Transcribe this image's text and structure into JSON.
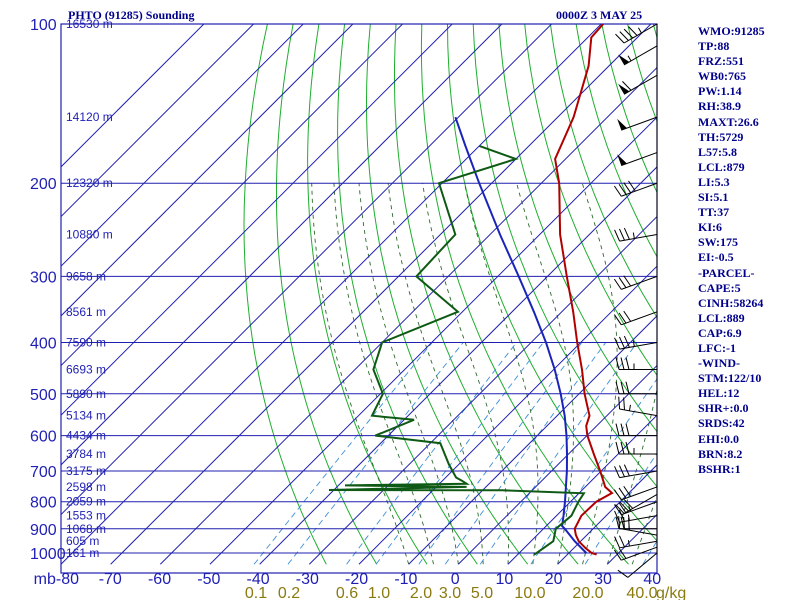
{
  "header": {
    "station": "PHTO (91285) Sounding",
    "valid_time": "0000Z  3 MAY 25"
  },
  "indices": [
    "WMO:91285",
    "TP:88",
    "FRZ:551",
    "WB0:765",
    "PW:1.14",
    "RH:38.9",
    "MAXT:26.6",
    "TH:5729",
    "L57:5.8",
    "LCL:879",
    "LI:5.3",
    "SI:5.1",
    "TT:37",
    "KI:6",
    "SW:175",
    "EI:-0.5",
    "-PARCEL-",
    "CAPE:5",
    "CINH:58264",
    "LCL:889",
    "CAP:6.9",
    "LFC:-1",
    "-WIND-",
    "STM:122/10",
    "HEL:12",
    "SHR+:0.0",
    "SRDS:42",
    "EHI:0.0",
    "BRN:8.2",
    "BSHR:1"
  ],
  "colors": {
    "isobar_isotherm": "#2020b0",
    "dry_adiabat": "#1fae2f",
    "moist_adiabat": "#2d6a2d",
    "mixing_ratio": "#3c8fd8",
    "temperature": "#b00000",
    "dewpoint": "#0e5a14",
    "parcel": "#1a24b8",
    "wind": "#000000"
  },
  "chart_data": {
    "type": "line",
    "title": "PHTO (91285) Sounding",
    "xlabel": "",
    "ylabel": "",
    "y_axis": {
      "scale": "log",
      "unit": "mb",
      "ticks": [
        100,
        200,
        300,
        400,
        500,
        600,
        700,
        800,
        900,
        1000
      ],
      "range": [
        100,
        1050
      ]
    },
    "x_axis": {
      "skewed": true,
      "unit": "C",
      "ticks": [
        -80,
        -70,
        -60,
        -50,
        -40,
        -30,
        -20,
        -10,
        0,
        10,
        20,
        30,
        40
      ],
      "tick_labels": [
        "mb-80",
        "-70",
        "-60",
        "-50",
        "-40",
        "-30",
        "-20",
        "-10",
        "0",
        "10",
        "20",
        "30",
        "40"
      ]
    },
    "mixing_ratio_labels": {
      "unit": "g/kg",
      "values": [
        "0.1",
        "0.2",
        "0.6",
        "1.0",
        "2.0",
        "3.0",
        "5.0",
        "10.0",
        "20.0",
        "40.0"
      ],
      "suffix": "g/kg"
    },
    "height_labels": [
      {
        "p": 100,
        "text": "16530 m"
      },
      {
        "p": 150,
        "text": "14120 m"
      },
      {
        "p": 200,
        "text": "12320 m"
      },
      {
        "p": 250,
        "text": "10880 m"
      },
      {
        "p": 300,
        "text": "9658 m"
      },
      {
        "p": 350,
        "text": "8561 m"
      },
      {
        "p": 400,
        "text": "7590 m"
      },
      {
        "p": 450,
        "text": "6693 m"
      },
      {
        "p": 500,
        "text": "5890 m"
      },
      {
        "p": 550,
        "text": "5134 m"
      },
      {
        "p": 600,
        "text": "4434 m"
      },
      {
        "p": 650,
        "text": "3784 m"
      },
      {
        "p": 700,
        "text": "3175 m"
      },
      {
        "p": 750,
        "text": "2598 m"
      },
      {
        "p": 800,
        "text": "2059 m"
      },
      {
        "p": 850,
        "text": "1553 m"
      },
      {
        "p": 900,
        "text": "1068 m"
      },
      {
        "p": 950,
        "text": "605 m"
      },
      {
        "p": 1000,
        "text": "161 m"
      }
    ],
    "series": [
      {
        "id": "temperature",
        "points": [
          [
            1007,
            25.9
          ],
          [
            1000,
            24.6
          ],
          [
            980,
            22.5
          ],
          [
            950,
            19.6
          ],
          [
            925,
            17.8
          ],
          [
            900,
            16.3
          ],
          [
            850,
            15.0
          ],
          [
            800,
            15.2
          ],
          [
            770,
            16.6
          ],
          [
            750,
            14.0
          ],
          [
            700,
            9.8
          ],
          [
            650,
            5.1
          ],
          [
            600,
            0.1
          ],
          [
            575,
            -2.1
          ],
          [
            550,
            -3.5
          ],
          [
            500,
            -8.9
          ],
          [
            450,
            -14.3
          ],
          [
            400,
            -20.7
          ],
          [
            350,
            -27.7
          ],
          [
            300,
            -36.1
          ],
          [
            250,
            -45.9
          ],
          [
            200,
            -56.4
          ],
          [
            180,
            -62.1
          ],
          [
            150,
            -66.8
          ],
          [
            120,
            -74.1
          ],
          [
            106,
            -79.3
          ],
          [
            100,
            -79.6
          ]
        ]
      },
      {
        "id": "dewpoint",
        "points": [
          [
            1007,
            13.3
          ],
          [
            1000,
            13.5
          ],
          [
            950,
            14.5
          ],
          [
            900,
            12.5
          ],
          [
            850,
            13.0
          ],
          [
            800,
            11.6
          ],
          [
            771,
            11.0
          ],
          [
            761,
            -6.1
          ],
          [
            760,
            -41.0
          ],
          [
            750,
            -13.9
          ],
          [
            745,
            -38.7
          ],
          [
            740,
            -14.5
          ],
          [
            730,
            -16.1
          ],
          [
            720,
            -17.9
          ],
          [
            680,
            -22.0
          ],
          [
            620,
            -28.0
          ],
          [
            600,
            -42.6
          ],
          [
            560,
            -38.0
          ],
          [
            550,
            -47.3
          ],
          [
            500,
            -49.5
          ],
          [
            450,
            -56.3
          ],
          [
            400,
            -60.0
          ],
          [
            350,
            -50.9
          ],
          [
            300,
            -66.4
          ],
          [
            250,
            -67.0
          ],
          [
            200,
            -80.6
          ],
          [
            180,
            -70.0
          ],
          [
            170,
            -80.0
          ]
        ]
      },
      {
        "id": "parcel",
        "points": [
          [
            1000,
            23.5
          ],
          [
            950,
            18.8
          ],
          [
            900,
            14.3
          ],
          [
            889,
            13.2
          ],
          [
            850,
            11.4
          ],
          [
            800,
            8.9
          ],
          [
            750,
            6.1
          ],
          [
            700,
            3.1
          ],
          [
            650,
            -0.3
          ],
          [
            600,
            -4.1
          ],
          [
            550,
            -8.5
          ],
          [
            500,
            -13.7
          ],
          [
            450,
            -19.8
          ],
          [
            400,
            -27.0
          ],
          [
            350,
            -35.6
          ],
          [
            300,
            -45.8
          ],
          [
            250,
            -58.0
          ],
          [
            200,
            -72.5
          ],
          [
            170,
            -82.8
          ],
          [
            150,
            -90.6
          ]
        ]
      }
    ],
    "wind_barbs": [
      {
        "p": 1000,
        "dir": 230,
        "spd": 10
      },
      {
        "p": 975,
        "dir": 250,
        "spd": 20
      },
      {
        "p": 950,
        "dir": 260,
        "spd": 25
      },
      {
        "p": 925,
        "dir": 280,
        "spd": 30
      },
      {
        "p": 900,
        "dir": 270,
        "spd": 25
      },
      {
        "p": 850,
        "dir": 260,
        "spd": 25
      },
      {
        "p": 800,
        "dir": 250,
        "spd": 25
      },
      {
        "p": 775,
        "dir": 240,
        "spd": 30
      },
      {
        "p": 750,
        "dir": 250,
        "spd": 30
      },
      {
        "p": 700,
        "dir": 260,
        "spd": 30
      },
      {
        "p": 650,
        "dir": 270,
        "spd": 35
      },
      {
        "p": 600,
        "dir": 270,
        "spd": 30
      },
      {
        "p": 550,
        "dir": 280,
        "spd": 25
      },
      {
        "p": 500,
        "dir": 270,
        "spd": 30
      },
      {
        "p": 450,
        "dir": 270,
        "spd": 35
      },
      {
        "p": 400,
        "dir": 260,
        "spd": 35
      },
      {
        "p": 350,
        "dir": 250,
        "spd": 30
      },
      {
        "p": 300,
        "dir": 250,
        "spd": 30
      },
      {
        "p": 250,
        "dir": 260,
        "spd": 35
      },
      {
        "p": 200,
        "dir": 250,
        "spd": 40
      },
      {
        "p": 175,
        "dir": 250,
        "spd": 50
      },
      {
        "p": 150,
        "dir": 250,
        "spd": 50
      },
      {
        "p": 125,
        "dir": 240,
        "spd": 60
      },
      {
        "p": 110,
        "dir": 240,
        "spd": 55
      },
      {
        "p": 100,
        "dir": 240,
        "spd": 45
      }
    ]
  }
}
